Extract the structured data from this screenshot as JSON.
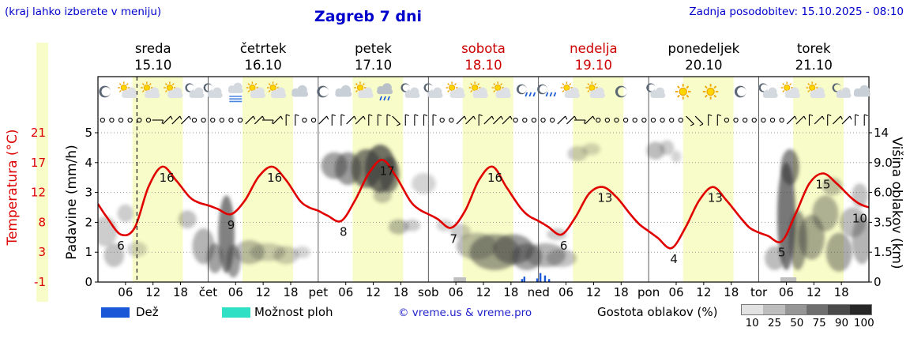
{
  "header": {
    "hint": "(kraj lahko izberete v meniju)",
    "title": "Zagreb 7 dni",
    "last_update": "Zadnja posodobitev: 15.10.2025 - 08:10"
  },
  "axes": {
    "temperature_label": "Temperatura (°C)",
    "temperature_ticks": [
      "21",
      "17",
      "12",
      "8",
      "3",
      "-1"
    ],
    "precip_label": "Padavine (mm/h)",
    "precip_ticks": [
      "5",
      "4",
      "3",
      "2",
      "1",
      "0"
    ],
    "cloud_height_label": "Višina oblakov (km)",
    "cloud_height_ticks": [
      "14",
      "9.0",
      "6.0",
      "3.5",
      "1.5",
      "0"
    ]
  },
  "days": [
    {
      "name": "sreda",
      "date": "15.10",
      "weekend": false
    },
    {
      "name": "četrtek",
      "date": "16.10",
      "weekend": false
    },
    {
      "name": "petek",
      "date": "17.10",
      "weekend": false
    },
    {
      "name": "sobota",
      "date": "18.10",
      "weekend": true
    },
    {
      "name": "nedelja",
      "date": "19.10",
      "weekend": true
    },
    {
      "name": "ponedeljek",
      "date": "20.10",
      "weekend": false
    },
    {
      "name": "torek",
      "date": "21.10",
      "weekend": false
    }
  ],
  "x_axis": {
    "hour_labels": [
      "06",
      "12",
      "18"
    ],
    "day_abbrs": [
      "čet",
      "pet",
      "sob",
      "ned",
      "pon",
      "tor"
    ]
  },
  "legend": {
    "rain": "Dež",
    "showers": "Možnost ploh",
    "copyright": "© vreme.us & vreme.pro",
    "cloud_density_label": "Gostota oblakov (%)",
    "cloud_density_ticks": [
      "10",
      "25",
      "50",
      "75",
      "90",
      "100"
    ]
  },
  "colors": {
    "accent_blue": "#0000cc",
    "weekend_red": "#cc0000",
    "temp_red": "#dd0000",
    "curve_red": "#e10000",
    "day_band": "#f8fcc8",
    "rain": "#1a58d8",
    "showers": "#2fe0c4",
    "grid": "#999999",
    "grayscale_steps": [
      "#e2e2e2",
      "#bdbdbd",
      "#969696",
      "#6e6e6e",
      "#4a4a4a",
      "#262626"
    ]
  },
  "chart_data": {
    "type": "line",
    "title": "Zagreb 7 dni",
    "hours_total": 168,
    "grid_max": 5,
    "temp_axis": {
      "min": -1,
      "units_per_grid": 4.4
    },
    "day_band": {
      "start": 7.5,
      "end": 18.5
    },
    "now_hour": 8.5,
    "temperature_series": [
      [
        0,
        10.5
      ],
      [
        2,
        8.5
      ],
      [
        5,
        6
      ],
      [
        8,
        7
      ],
      [
        11,
        13
      ],
      [
        14,
        16
      ],
      [
        17,
        14
      ],
      [
        20,
        11.5
      ],
      [
        22,
        10.7
      ],
      [
        24,
        10.3
      ],
      [
        26,
        9.8
      ],
      [
        29,
        9
      ],
      [
        32,
        11
      ],
      [
        35,
        14.5
      ],
      [
        38,
        16
      ],
      [
        41,
        14
      ],
      [
        44,
        11
      ],
      [
        46,
        10
      ],
      [
        48,
        9.5
      ],
      [
        50,
        8.8
      ],
      [
        53,
        8
      ],
      [
        56,
        11
      ],
      [
        59,
        15
      ],
      [
        62,
        17
      ],
      [
        65,
        14.5
      ],
      [
        68,
        11
      ],
      [
        70,
        9.7
      ],
      [
        72,
        9
      ],
      [
        74,
        8.3
      ],
      [
        77,
        7
      ],
      [
        80,
        9.5
      ],
      [
        83,
        14
      ],
      [
        86,
        16
      ],
      [
        89,
        13
      ],
      [
        92,
        10
      ],
      [
        94,
        8.7
      ],
      [
        96,
        8
      ],
      [
        98,
        7.2
      ],
      [
        101,
        6
      ],
      [
        104,
        8.5
      ],
      [
        107,
        12
      ],
      [
        110,
        13
      ],
      [
        113,
        11.5
      ],
      [
        116,
        9
      ],
      [
        118,
        7.5
      ],
      [
        120,
        6.5
      ],
      [
        122,
        5.5
      ],
      [
        125,
        4
      ],
      [
        128,
        7
      ],
      [
        131,
        11
      ],
      [
        134,
        13
      ],
      [
        137,
        11
      ],
      [
        140,
        8.5
      ],
      [
        142,
        7
      ],
      [
        144,
        6.3
      ],
      [
        146,
        5.8
      ],
      [
        149,
        5
      ],
      [
        152,
        9
      ],
      [
        155,
        13.5
      ],
      [
        158,
        15
      ],
      [
        161,
        13.5
      ],
      [
        164,
        11.5
      ],
      [
        166,
        10.5
      ],
      [
        168,
        10
      ]
    ],
    "annotations": [
      [
        5,
        6
      ],
      [
        15,
        16
      ],
      [
        29,
        9
      ],
      [
        38.5,
        16
      ],
      [
        53.5,
        8
      ],
      [
        63,
        17
      ],
      [
        77.5,
        7
      ],
      [
        86.5,
        16
      ],
      [
        101.5,
        6
      ],
      [
        110.5,
        13
      ],
      [
        125.5,
        4
      ],
      [
        134.5,
        13
      ],
      [
        149,
        5
      ],
      [
        158,
        15
      ],
      [
        166,
        10
      ]
    ],
    "clouds": [
      [
        1.5,
        1.7,
        2.5,
        1.0,
        0.3
      ],
      [
        3.5,
        0.9,
        2,
        0.8,
        0.35
      ],
      [
        6,
        2.3,
        1.6,
        0.6,
        0.3
      ],
      [
        8.5,
        1.1,
        2,
        0.5,
        0.25
      ],
      [
        19.5,
        2.1,
        1.8,
        0.6,
        0.35
      ],
      [
        23,
        1.2,
        2.2,
        1.2,
        0.45
      ],
      [
        25.5,
        0.8,
        1.6,
        1.0,
        0.55
      ],
      [
        28,
        1.6,
        1.6,
        2.6,
        0.75
      ],
      [
        29.5,
        0.7,
        1.4,
        1.1,
        0.6
      ],
      [
        33,
        1.0,
        3,
        0.8,
        0.4
      ],
      [
        37,
        1.0,
        3.5,
        0.6,
        0.3
      ],
      [
        41,
        0.9,
        2.5,
        0.6,
        0.3
      ],
      [
        44.5,
        1.0,
        1.6,
        0.4,
        0.25
      ],
      [
        51.5,
        3.9,
        2.6,
        0.9,
        0.55
      ],
      [
        54.5,
        3.8,
        2.6,
        1.1,
        0.6
      ],
      [
        58.5,
        3.8,
        3,
        1.3,
        0.75
      ],
      [
        61.5,
        3.8,
        3,
        1.6,
        0.85
      ],
      [
        63.5,
        3.6,
        2,
        1.2,
        0.7
      ],
      [
        62,
        2.9,
        1.8,
        0.5,
        0.35
      ],
      [
        65.5,
        1.85,
        2,
        0.5,
        0.4
      ],
      [
        68.5,
        1.9,
        1.6,
        0.4,
        0.3
      ],
      [
        71,
        3.3,
        2.4,
        0.7,
        0.25
      ],
      [
        75.5,
        1.9,
        1.6,
        0.4,
        0.25
      ],
      [
        79,
        1.7,
        2,
        0.5,
        0.3
      ],
      [
        82.5,
        1.2,
        4,
        0.9,
        0.4
      ],
      [
        86.5,
        1.0,
        5,
        1.2,
        0.55
      ],
      [
        90.5,
        1.1,
        4,
        1.0,
        0.6
      ],
      [
        93.5,
        0.85,
        3,
        0.9,
        0.55
      ],
      [
        97.5,
        0.9,
        4,
        0.8,
        0.45
      ],
      [
        101,
        0.8,
        3,
        0.6,
        0.35
      ],
      [
        100,
        1.6,
        2,
        0.4,
        0.3
      ],
      [
        104.5,
        4.3,
        2,
        0.5,
        0.3
      ],
      [
        107.5,
        4.45,
        1.8,
        0.4,
        0.25
      ],
      [
        121.5,
        4.4,
        1.8,
        0.6,
        0.4
      ],
      [
        124,
        4.5,
        1.4,
        0.5,
        0.3
      ],
      [
        126,
        4.2,
        1,
        0.4,
        0.25
      ],
      [
        147.5,
        0.8,
        2,
        0.8,
        0.4
      ],
      [
        150,
        2.2,
        1.8,
        3.6,
        0.8
      ],
      [
        150.8,
        3.85,
        1.8,
        1.2,
        0.7
      ],
      [
        152.5,
        1.4,
        1.8,
        2.0,
        0.6
      ],
      [
        155.5,
        1.5,
        2.6,
        1.5,
        0.5
      ],
      [
        158.5,
        2.3,
        2.6,
        1.2,
        0.45
      ],
      [
        161.5,
        1.0,
        2.6,
        1.3,
        0.5
      ],
      [
        164.5,
        2.0,
        2.6,
        1.0,
        0.4
      ],
      [
        166.5,
        1.4,
        2,
        1.6,
        0.45
      ],
      [
        160,
        3.2,
        2,
        0.6,
        0.35
      ],
      [
        166,
        2.9,
        1.6,
        0.8,
        0.35
      ]
    ],
    "rain_bars": [
      [
        92.4,
        0.1
      ],
      [
        92.9,
        0.18
      ],
      [
        95.7,
        0.12
      ],
      [
        96.4,
        0.3
      ],
      [
        97.4,
        0.22
      ],
      [
        98.3,
        0.1
      ]
    ],
    "gray_bars": [
      [
        77.5,
        80.2
      ],
      [
        148.7,
        152.2
      ]
    ],
    "icons": [
      [
        1.5,
        "moon"
      ],
      [
        6.5,
        "sun-cloud"
      ],
      [
        11.5,
        "sun-cloud"
      ],
      [
        16.5,
        "sun-cloud"
      ],
      [
        21,
        "moon-cloud"
      ],
      [
        25,
        "moon-cloud"
      ],
      [
        30,
        "fog"
      ],
      [
        34.5,
        "sun-cloud"
      ],
      [
        39,
        "sun-cloud"
      ],
      [
        44,
        "cloud"
      ],
      [
        49,
        "moon"
      ],
      [
        53.5,
        "cloud"
      ],
      [
        58,
        "sun-cloud"
      ],
      [
        62.5,
        "cloud-rain"
      ],
      [
        68,
        "moon-cloud"
      ],
      [
        73,
        "moon-cloud"
      ],
      [
        78,
        "sun-cloud"
      ],
      [
        83,
        "sun-cloud"
      ],
      [
        88,
        "sun-cloud"
      ],
      [
        93,
        "moon-rain"
      ],
      [
        97.5,
        "moon-rain"
      ],
      [
        103,
        "sun-cloud"
      ],
      [
        108.5,
        "sun-cloud"
      ],
      [
        114,
        "moon"
      ],
      [
        121.5,
        "moon-cloud"
      ],
      [
        127.5,
        "sun"
      ],
      [
        133.5,
        "sun"
      ],
      [
        140,
        "moon"
      ],
      [
        146,
        "moon-cloud"
      ],
      [
        151,
        "sun-cloud"
      ],
      [
        156.5,
        "sun-cloud"
      ],
      [
        162,
        "moon-cloud"
      ],
      [
        166.5,
        "cloud"
      ]
    ],
    "wind": [
      "oooooo-///oo",
      "oooo//-/||oo",
      "/||//|||\\|||",
      "|oo//|///ooo",
      "oo//-/oooooo",
      "oooo\\\\||oooo",
      "ooo//|/|//||"
    ]
  }
}
